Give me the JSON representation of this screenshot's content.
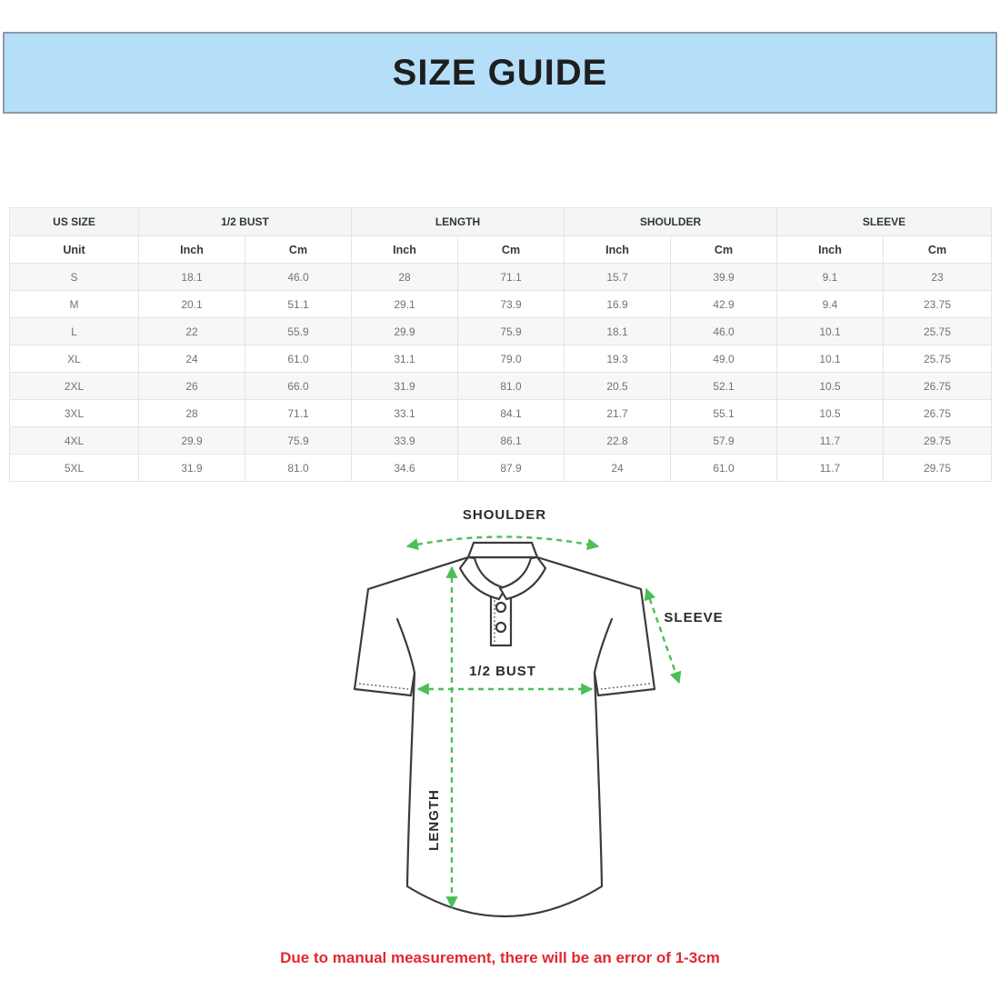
{
  "header": {
    "title": "SIZE GUIDE"
  },
  "table": {
    "groups": [
      {
        "label": "US SIZE",
        "span": 1
      },
      {
        "label": "1/2 BUST",
        "span": 2
      },
      {
        "label": "LENGTH",
        "span": 2
      },
      {
        "label": "SHOULDER",
        "span": 2
      },
      {
        "label": "SLEEVE",
        "span": 2
      }
    ],
    "unit_row": [
      "Unit",
      "Inch",
      "Cm",
      "Inch",
      "Cm",
      "Inch",
      "Cm",
      "Inch",
      "Cm"
    ],
    "rows": [
      [
        "S",
        "18.1",
        "46.0",
        "28",
        "71.1",
        "15.7",
        "39.9",
        "9.1",
        "23"
      ],
      [
        "M",
        "20.1",
        "51.1",
        "29.1",
        "73.9",
        "16.9",
        "42.9",
        "9.4",
        "23.75"
      ],
      [
        "L",
        "22",
        "55.9",
        "29.9",
        "75.9",
        "18.1",
        "46.0",
        "10.1",
        "25.75"
      ],
      [
        "XL",
        "24",
        "61.0",
        "31.1",
        "79.0",
        "19.3",
        "49.0",
        "10.1",
        "25.75"
      ],
      [
        "2XL",
        "26",
        "66.0",
        "31.9",
        "81.0",
        "20.5",
        "52.1",
        "10.5",
        "26.75"
      ],
      [
        "3XL",
        "28",
        "71.1",
        "33.1",
        "84.1",
        "21.7",
        "55.1",
        "10.5",
        "26.75"
      ],
      [
        "4XL",
        "29.9",
        "75.9",
        "33.9",
        "86.1",
        "22.8",
        "57.9",
        "11.7",
        "29.75"
      ],
      [
        "5XL",
        "31.9",
        "81.0",
        "34.6",
        "87.9",
        "24",
        "61.0",
        "11.7",
        "29.75"
      ]
    ]
  },
  "diagram": {
    "labels": {
      "shoulder": "SHOULDER",
      "sleeve": "SLEEVE",
      "bust": "1/2 BUST",
      "length": "LENGTH"
    }
  },
  "footer": {
    "note": "Due to manual measurement, there will be an error of 1-3cm"
  },
  "colors": {
    "banner_bg": "#b5def9",
    "banner_border": "#8e9ca9",
    "accent_green": "#4dbe58",
    "note_red": "#e32730"
  }
}
